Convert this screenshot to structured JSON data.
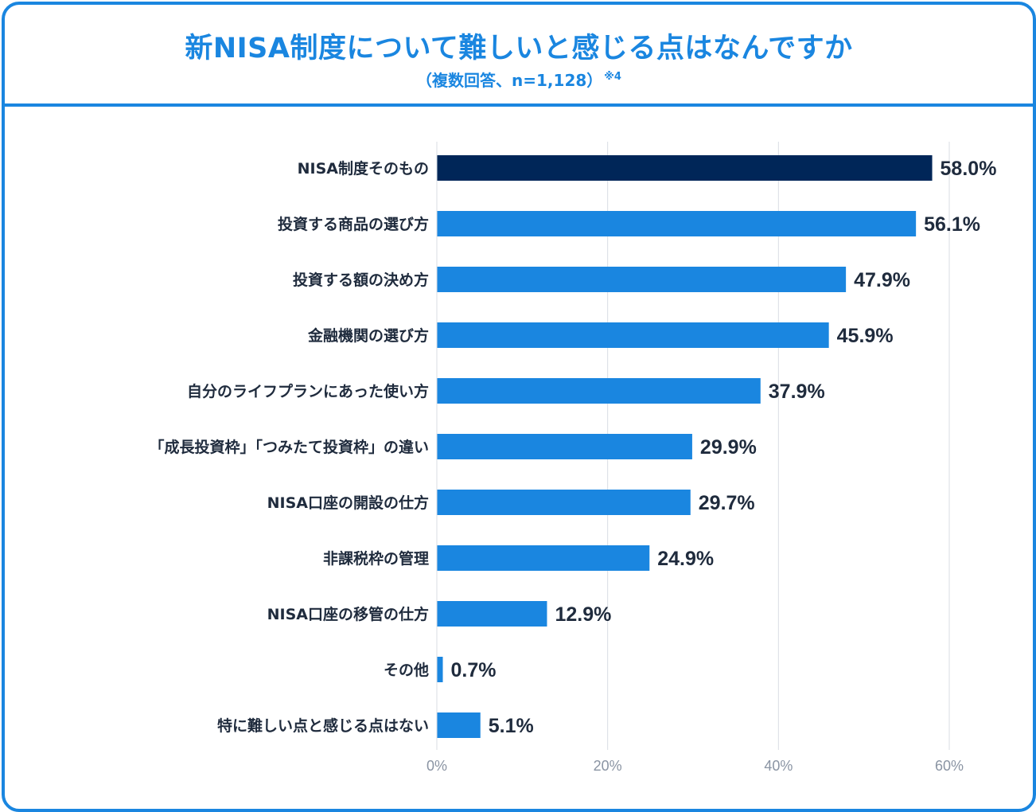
{
  "chart_data": {
    "type": "bar",
    "orientation": "horizontal",
    "title": "新NISA制度について難しいと感じる点はなんですか",
    "subtitle": "（複数回答、n=1,128）",
    "subtitle_note": "※4",
    "categories": [
      "NISA制度そのもの",
      "投資する商品の選び方",
      "投資する額の決め方",
      "金融機関の選び方",
      "自分のライフプランにあった使い方",
      "「成長投資枠」「つみたて投資枠」の違い",
      "NISA口座の開設の仕方",
      "非課税枠の管理",
      "NISA口座の移管の仕方",
      "その他",
      "特に難しい点と感じる点はない"
    ],
    "values": [
      58.0,
      56.1,
      47.9,
      45.9,
      37.9,
      29.9,
      29.7,
      24.9,
      12.9,
      0.7,
      5.1
    ],
    "value_labels": [
      "58.0%",
      "56.1%",
      "47.9%",
      "45.9%",
      "37.9%",
      "29.9%",
      "29.7%",
      "24.9%",
      "12.9%",
      "0.7%",
      "5.1%"
    ],
    "xlim": [
      0,
      60
    ],
    "xticks": [
      0,
      20,
      40,
      60
    ],
    "xtick_labels": [
      "0%",
      "20%",
      "40%",
      "60%"
    ],
    "grid": true,
    "colors": {
      "highlight": "#002658",
      "bar": "#1a86e0",
      "frame": "#1a86e0",
      "grid": "#d9dde3"
    }
  }
}
